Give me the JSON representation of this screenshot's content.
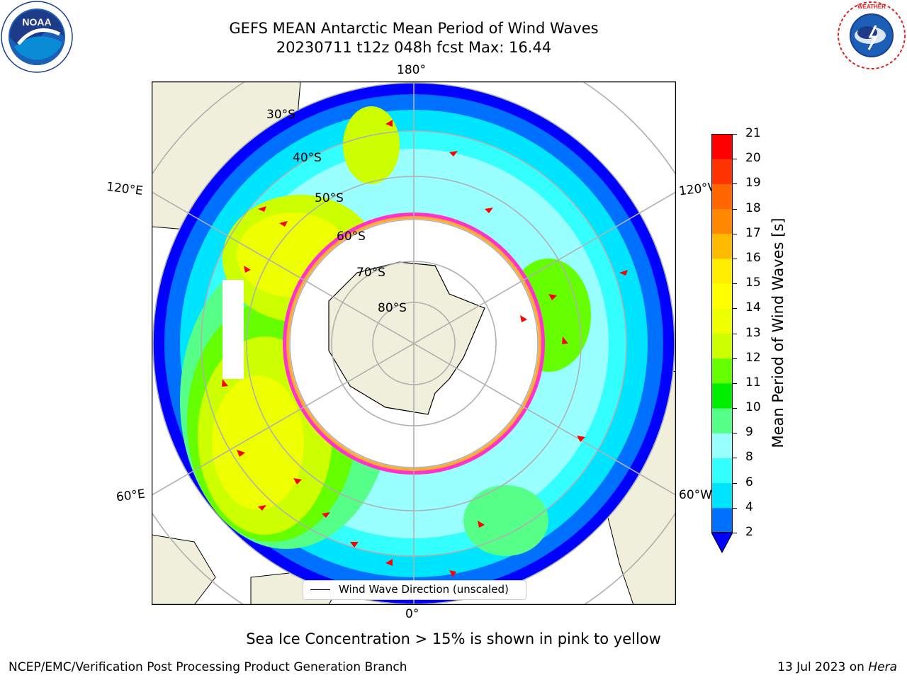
{
  "header": {
    "title_line1": "GEFS MEAN Antarctic Mean Period of Wind Waves",
    "title_line2": "20230711 t12z 048h fcst   Max: 16.44"
  },
  "logos": {
    "left": {
      "name": "noaa-logo",
      "text": "NOAA",
      "ring_text": "NATIONAL OCEANIC AND ATMOSPHERIC ADMINISTRATION · U.S. DEPARTMENT OF COMMERCE"
    },
    "right": {
      "name": "nws-logo",
      "ring_text": "NATIONAL WEATHER SERVICE"
    }
  },
  "map": {
    "projection": "south-polar-stereographic",
    "longitude_labels": {
      "top": "180°",
      "bottom": "0°",
      "upper_left": "120°E",
      "upper_right": "120°W",
      "lower_left": "60°E",
      "lower_right": "60°W"
    },
    "latitude_labels": [
      "30°S",
      "40°S",
      "50°S",
      "60°S",
      "70°S",
      "80°S"
    ],
    "colors": {
      "land": "#efefdc",
      "ice_edge": "#ff33cc",
      "arrow": "#ff0000",
      "grid": "#b0b0b0"
    },
    "legend": {
      "label": "Wind Wave Direction (unscaled)"
    }
  },
  "colorbar": {
    "label": "Mean Period of Wind Waves [s]",
    "ticks": [
      "21",
      "20",
      "19",
      "18",
      "17",
      "16",
      "15",
      "14",
      "13",
      "12",
      "11",
      "10",
      "9",
      "8",
      "6",
      "4",
      "2"
    ],
    "levels": [
      {
        "from": "2",
        "to": "4",
        "color": "#0070ff"
      },
      {
        "from": "4",
        "to": "6",
        "color": "#00e5ff"
      },
      {
        "from": "6",
        "to": "8",
        "color": "#33ffff"
      },
      {
        "from": "8",
        "to": "9",
        "color": "#99ffff"
      },
      {
        "from": "9",
        "to": "10",
        "color": "#55ff88"
      },
      {
        "from": "10",
        "to": "11",
        "color": "#00ee00"
      },
      {
        "from": "11",
        "to": "12",
        "color": "#66ff00"
      },
      {
        "from": "12",
        "to": "13",
        "color": "#ccff00"
      },
      {
        "from": "13",
        "to": "14",
        "color": "#eeff00"
      },
      {
        "from": "14",
        "to": "15",
        "color": "#ffff00"
      },
      {
        "from": "15",
        "to": "16",
        "color": "#ffee00"
      },
      {
        "from": "16",
        "to": "17",
        "color": "#ffbb00"
      },
      {
        "from": "17",
        "to": "18",
        "color": "#ff8800"
      },
      {
        "from": "18",
        "to": "19",
        "color": "#ff6600"
      },
      {
        "from": "19",
        "to": "20",
        "color": "#ff3300"
      },
      {
        "from": "20",
        "to": "21",
        "color": "#ff0000"
      }
    ],
    "extend_color": "#0000ff"
  },
  "caption": "Sea Ice Concentration > 15% is shown in pink to yellow",
  "footer": {
    "left": "NCEP/EMC/Verification Post Processing Product Generation Branch",
    "right_prefix": "13 Jul 2023 on ",
    "right_host": "Hera"
  }
}
